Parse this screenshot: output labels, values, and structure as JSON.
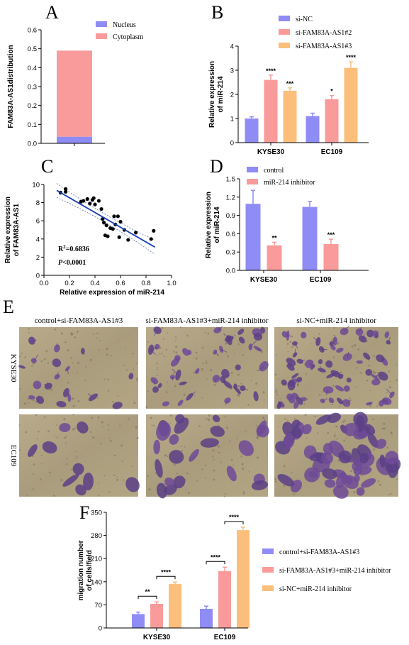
{
  "colors": {
    "blue": "#8f8cf5",
    "pink": "#f99b9b",
    "orange": "#fbbf7b",
    "line": "#1a3fb5",
    "ci": "#5a6fb8"
  },
  "panels": {
    "A": "A",
    "B": "B",
    "C": "C",
    "D": "D",
    "E": "E",
    "F": "F"
  },
  "chart_data": [
    {
      "panel": "A",
      "type": "bar",
      "stacked": true,
      "categories": [
        ""
      ],
      "series": [
        {
          "name": "Nucleus",
          "values": [
            0.035
          ],
          "color": "#8f8cf5"
        },
        {
          "name": "Cytoplasm",
          "values": [
            0.455
          ],
          "color": "#f99b9b"
        }
      ],
      "ylabel": "FAM83A-AS1distribution",
      "ylim": [
        0,
        0.6
      ],
      "yticks": [
        "0.0",
        "0.1",
        "0.2",
        "0.3",
        "0.4",
        "0.5",
        "0.6"
      ],
      "legend": "top-right"
    },
    {
      "panel": "B",
      "type": "bar",
      "categories": [
        "KYSE30",
        "EC109"
      ],
      "series": [
        {
          "name": "si-NC",
          "values": [
            1.0,
            1.1
          ],
          "errors": [
            0.07,
            0.12
          ],
          "sig": [
            "",
            ""
          ],
          "color": "#8f8cf5"
        },
        {
          "name": "si-FAM83A-AS1#2",
          "values": [
            2.6,
            1.8
          ],
          "errors": [
            0.2,
            0.15
          ],
          "sig": [
            "****",
            "*"
          ],
          "color": "#f99b9b"
        },
        {
          "name": "si-FAM83A-AS1#3",
          "values": [
            2.15,
            3.1
          ],
          "errors": [
            0.12,
            0.25
          ],
          "sig": [
            "***",
            "****"
          ],
          "color": "#fbbf7b"
        }
      ],
      "ylabel_lines": [
        "Relative expression",
        "of miR-214"
      ],
      "ylim": [
        0,
        4
      ],
      "yticks": [
        "0",
        "1",
        "2",
        "3",
        "4"
      ],
      "legend": "top-left"
    },
    {
      "panel": "C",
      "type": "scatter",
      "points": [
        [
          0.13,
          9.1
        ],
        [
          0.17,
          9.5
        ],
        [
          0.17,
          9.2
        ],
        [
          0.29,
          8.1
        ],
        [
          0.31,
          8.2
        ],
        [
          0.34,
          8.4
        ],
        [
          0.36,
          7.9
        ],
        [
          0.38,
          8.3
        ],
        [
          0.39,
          8.5
        ],
        [
          0.4,
          7.8
        ],
        [
          0.43,
          8.2
        ],
        [
          0.45,
          7.3
        ],
        [
          0.46,
          6.2
        ],
        [
          0.47,
          5.8
        ],
        [
          0.48,
          4.4
        ],
        [
          0.49,
          5.5
        ],
        [
          0.5,
          4.3
        ],
        [
          0.52,
          5.2
        ],
        [
          0.54,
          5.1
        ],
        [
          0.55,
          6.5
        ],
        [
          0.56,
          5.6
        ],
        [
          0.58,
          6.5
        ],
        [
          0.59,
          4.2
        ],
        [
          0.6,
          5.9
        ],
        [
          0.63,
          5.0
        ],
        [
          0.66,
          3.9
        ],
        [
          0.72,
          4.7
        ],
        [
          0.84,
          4.0
        ],
        [
          0.86,
          4.9
        ]
      ],
      "fit": {
        "x": [
          0.1,
          0.87
        ],
        "y": [
          9.35,
          3.1
        ]
      },
      "xlabel": "Relative expression of miR-214",
      "ylabel_lines": [
        "Relative expression",
        "of FAM83A-AS1"
      ],
      "xlim": [
        0,
        1.0
      ],
      "ylim": [
        0,
        10
      ],
      "xticks": [
        "0.0",
        "0.2",
        "0.4",
        "0.6",
        "0.8",
        "1.0"
      ],
      "yticks": [
        "0",
        "2",
        "4",
        "6",
        "8",
        "10"
      ],
      "r2_prefix": "R",
      "r2_sup": "2",
      "r2_value": "=0.6836",
      "p_italic": "P",
      "p_value": "<0.0001"
    },
    {
      "panel": "D",
      "type": "bar",
      "categories": [
        "KYSE30",
        "EC109"
      ],
      "series": [
        {
          "name": "control",
          "values": [
            1.09,
            1.04
          ],
          "errors": [
            0.22,
            0.09
          ],
          "sig": [
            "",
            ""
          ],
          "color": "#8f8cf5"
        },
        {
          "name": "miR-214 inhibitor",
          "values": [
            0.41,
            0.43
          ],
          "errors": [
            0.05,
            0.08
          ],
          "sig": [
            "**",
            "***"
          ],
          "color": "#f99b9b"
        }
      ],
      "ylabel_lines": [
        "Relative expression",
        "of miR-214"
      ],
      "ylim": [
        0,
        1.5
      ],
      "yticks": [
        "0.0",
        "0.3",
        "0.6",
        "0.9",
        "1.2",
        "1.5"
      ],
      "legend": "top-left"
    },
    {
      "panel": "F",
      "type": "bar",
      "categories": [
        "KYSE30",
        "EC109"
      ],
      "series": [
        {
          "name": "control+si-FAM83A-AS1#3",
          "values": [
            42,
            58
          ],
          "errors": [
            6,
            8
          ],
          "color": "#8f8cf5"
        },
        {
          "name": "si-FAM83A-AS1#3+miR-214 inhibitor",
          "values": [
            73,
            172
          ],
          "errors": [
            6,
            12
          ],
          "color": "#f99b9b"
        },
        {
          "name": "si-NC+miR-214 inhibitor",
          "values": [
            133,
            296
          ],
          "errors": [
            6,
            9
          ],
          "color": "#fbbf7b"
        }
      ],
      "brackets": [
        {
          "group": 0,
          "from": 0,
          "to": 1,
          "label": "**"
        },
        {
          "group": 0,
          "from": 1,
          "to": 2,
          "label": "****"
        },
        {
          "group": 1,
          "from": 0,
          "to": 1,
          "label": "****"
        },
        {
          "group": 1,
          "from": 1,
          "to": 2,
          "label": "****"
        }
      ],
      "ylabel_lines": [
        "migration number",
        "of cells/field"
      ],
      "ylim": [
        0,
        350
      ],
      "yticks": [
        "0",
        "70",
        "140",
        "210",
        "280",
        "350"
      ],
      "legend": "right"
    }
  ],
  "panel_e": {
    "column_labels": [
      "control+si-FAM83A-AS1#3",
      "si-FAM83A-AS1#3+miR-214 inhibitor",
      "si-NC+miR-214 inhibitor"
    ],
    "row_labels": [
      "KYSE30",
      "EC109"
    ],
    "density": [
      [
        18,
        40,
        65
      ],
      [
        9,
        22,
        55
      ]
    ]
  }
}
